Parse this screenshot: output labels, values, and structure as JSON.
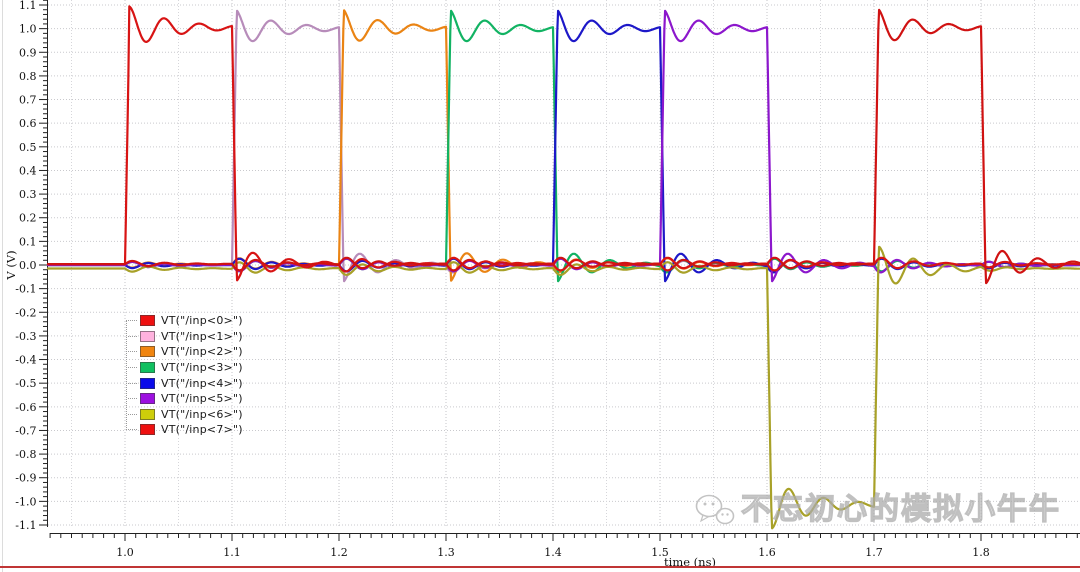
{
  "window": {
    "bottom_border_color": "#c03535",
    "left_border_color": "#dcdcdc"
  },
  "watermark": {
    "text": "不忘初心的模拟小牛牛",
    "icon": "wechat-icon"
  },
  "chart_data": {
    "type": "line",
    "title": "",
    "xlabel": "time (ns)",
    "ylabel": "V (V)",
    "x_range_ns": [
      0.928,
      1.8925
    ],
    "x_major_ticks": [
      1.0,
      1.1,
      1.2,
      1.3,
      1.4,
      1.5,
      1.6,
      1.7,
      1.8
    ],
    "x_minor_step_ns": 0.01,
    "x_grid_step_ns": 0.05,
    "ylim": [
      -1.1,
      1.1
    ],
    "y_major_step_v": 0.1,
    "y_minor_step_v": 0.02,
    "grid_style": "dotted",
    "legend_position": "middle-left",
    "pulse_high_v": 1.0,
    "series": [
      {
        "name": "VT(\"/inp<0>\")",
        "legend_color": "#ee1010",
        "trace_color": "#d81414",
        "pulse_ns": [
          1.0,
          1.1
        ],
        "amplitude_v": 1,
        "baseline_offset_v": 0.004
      },
      {
        "name": "VT(\"/inp<1>\")",
        "legend_color": "#ffb2de",
        "trace_color": "#b78cba",
        "pulse_ns": [
          1.1,
          1.2
        ],
        "amplitude_v": 1,
        "baseline_offset_v": 0
      },
      {
        "name": "VT(\"/inp<2>\")",
        "legend_color": "#f08510",
        "trace_color": "#ea8414",
        "pulse_ns": [
          1.2,
          1.3
        ],
        "amplitude_v": 1,
        "baseline_offset_v": 0.002
      },
      {
        "name": "VT(\"/inp<3>\")",
        "legend_color": "#10c060",
        "trace_color": "#12b363",
        "pulse_ns": [
          1.3,
          1.4
        ],
        "amplitude_v": 1,
        "baseline_offset_v": 0
      },
      {
        "name": "VT(\"/inp<4>\")",
        "legend_color": "#0b0bea",
        "trace_color": "#1d18c8",
        "pulse_ns": [
          1.4,
          1.5
        ],
        "amplitude_v": 1,
        "baseline_offset_v": 0
      },
      {
        "name": "VT(\"/inp<5>\")",
        "legend_color": "#9d10e0",
        "trace_color": "#8c17cc",
        "pulse_ns": [
          1.5,
          1.6
        ],
        "amplitude_v": 1,
        "baseline_offset_v": 0
      },
      {
        "name": "VT(\"/inp<6>\")",
        "legend_color": "#cdcd0a",
        "trace_color": "#a8a128",
        "pulse_ns": [
          1.6,
          1.7
        ],
        "amplitude_v": -1,
        "baseline_offset_v": -0.015
      },
      {
        "name": "VT(\"/inp<7>\")",
        "legend_color": "#ee1010",
        "trace_color": "#d01212",
        "pulse_ns": [
          1.7,
          1.8
        ],
        "amplitude_v": 1,
        "baseline_offset_v": 0.004
      }
    ],
    "waveform_model": {
      "rise_time_ns": 0.004,
      "overshoot_v": 0.09,
      "ring_period_ns": 0.033,
      "ring_decay_ns": 0.04,
      "crosstalk_amp_v": 0.016
    }
  }
}
